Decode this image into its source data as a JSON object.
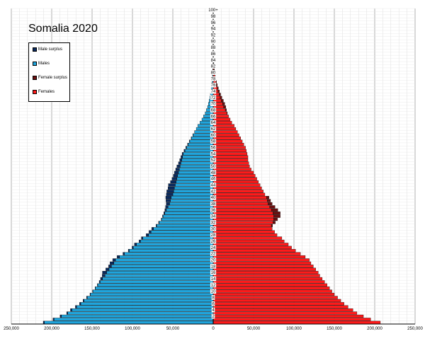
{
  "chart_data": {
    "type": "bar",
    "orientation": "horizontal-pyramid",
    "title": "Somalia 2020",
    "xlim": [
      -250000,
      250000
    ],
    "x_tick_labels": [
      "250,000",
      "200,000",
      "150,000",
      "100,000",
      "50,000",
      "0",
      "50,000",
      "100,000",
      "150,000",
      "200,000",
      "250,000"
    ],
    "age_labels": [
      "2",
      "4",
      "6",
      "8",
      "10",
      "12",
      "14",
      "16",
      "18",
      "20",
      "22",
      "24",
      "26",
      "28",
      "30",
      "32",
      "34",
      "36",
      "38",
      "40",
      "42",
      "44",
      "46",
      "48",
      "50",
      "52",
      "54",
      "56",
      "58",
      "60",
      "62",
      "64",
      "66",
      "68",
      "70",
      "72",
      "74",
      "76",
      "78",
      "80",
      "82",
      "84",
      "86",
      "88",
      "90",
      "92",
      "94",
      "96",
      "98",
      "100+"
    ],
    "ages_first": 0,
    "ages_last": 100,
    "grid": true,
    "legend_position": "top-left",
    "legend": [
      {
        "label": "Male surplus",
        "color": "#0a2a5e"
      },
      {
        "label": "Males",
        "color": "#1fa5dd"
      },
      {
        "label": "Female surplus",
        "color": "#6b0f0f"
      },
      {
        "label": "Females",
        "color": "#ff1a1a"
      }
    ],
    "series": [
      {
        "name": "Males",
        "color": "#1fa5dd",
        "values": [
          209000,
          197000,
          188000,
          180000,
          175000,
          169000,
          164000,
          160000,
          156000,
          152000,
          149000,
          146000,
          143000,
          140000,
          137000,
          134000,
          132000,
          129000,
          126000,
          123000,
          121000,
          116000,
          110000,
          104000,
          99000,
          95000,
          90000,
          87000,
          80000,
          77000,
          74000,
          70000,
          67000,
          64000,
          62000,
          60000,
          58000,
          56000,
          54000,
          53000,
          52000,
          50000,
          49000,
          48000,
          47000,
          46000,
          45000,
          44000,
          43000,
          42000,
          41000,
          40000,
          39000,
          38000,
          37000,
          35000,
          33000,
          31000,
          29000,
          27000,
          25000,
          23000,
          21000,
          19000,
          16500,
          14000,
          12000,
          10000,
          8500,
          7000,
          6000,
          5000,
          4200,
          3500,
          3000,
          2500,
          2000,
          1600,
          1300,
          1000,
          800,
          600,
          450,
          300,
          200,
          120,
          80,
          50,
          30,
          15,
          8,
          4,
          2,
          1,
          0,
          0,
          0,
          0,
          0,
          0,
          0
        ]
      },
      {
        "name": "Male surplus",
        "color": "#0a2a5e",
        "values": [
          1500,
          1400,
          1600,
          1500,
          1800,
          1700,
          1500,
          1200,
          900,
          600,
          400,
          300,
          500,
          1200,
          2500,
          3500,
          5200,
          4000,
          3500,
          4800,
          3500,
          3000,
          1800,
          1200,
          1500,
          2500,
          1800,
          2000,
          3000,
          2500,
          2200,
          800,
          600,
          400,
          800,
          1200,
          1800,
          3000,
          4200,
          5500,
          6800,
          8000,
          8500,
          8000,
          8500,
          7000,
          6000,
          5200,
          5000,
          4500,
          4000,
          3000,
          2500,
          2000,
          1500,
          1200,
          1000,
          700,
          500,
          300,
          200,
          100,
          0,
          0,
          0,
          0,
          0,
          0,
          0,
          0,
          0,
          0,
          0,
          0,
          0,
          0,
          0,
          0,
          0,
          0,
          0,
          0,
          0,
          0,
          0,
          0,
          0,
          0,
          0,
          0,
          0,
          0,
          0,
          0,
          0,
          0,
          0,
          0,
          0,
          0,
          0
        ]
      },
      {
        "name": "Females",
        "color": "#ff1a1a",
        "values": [
          207000,
          195000,
          186000,
          178000,
          173000,
          167000,
          162000,
          158000,
          154000,
          150000,
          147000,
          144000,
          141000,
          138000,
          135000,
          132000,
          130000,
          127000,
          124000,
          121000,
          119000,
          114000,
          108000,
          102000,
          97000,
          93000,
          88000,
          85000,
          79000,
          76000,
          73000,
          72000,
          74000,
          75000,
          75000,
          74000,
          72000,
          70000,
          68000,
          67000,
          66000,
          64000,
          62000,
          60000,
          58000,
          56000,
          54000,
          52000,
          50000,
          47000,
          45000,
          44000,
          43000,
          43000,
          42000,
          41000,
          40000,
          38000,
          36000,
          34000,
          32000,
          30000,
          28000,
          26000,
          23000,
          21000,
          19000,
          17000,
          15000,
          13000,
          11500,
          10000,
          8500,
          7200,
          6000,
          5000,
          4000,
          3200,
          2600,
          2000,
          1600,
          1200,
          900,
          650,
          450,
          300,
          200,
          130,
          80,
          50,
          30,
          18,
          10,
          5,
          3,
          2,
          1,
          0,
          0,
          0,
          0
        ]
      },
      {
        "name": "Female surplus",
        "color": "#6b0f0f",
        "values": [
          0,
          0,
          0,
          0,
          0,
          0,
          0,
          0,
          0,
          0,
          0,
          0,
          0,
          0,
          0,
          0,
          0,
          0,
          0,
          0,
          0,
          0,
          0,
          0,
          0,
          0,
          0,
          0,
          0,
          0,
          0,
          1500,
          3000,
          4500,
          8000,
          9000,
          8000,
          6500,
          5000,
          4000,
          3000,
          0,
          0,
          0,
          0,
          0,
          0,
          0,
          0,
          0,
          0,
          0,
          0,
          0,
          0,
          0,
          0,
          0,
          0,
          0,
          0,
          0,
          0,
          0,
          0,
          0,
          0,
          500,
          1500,
          2500,
          2800,
          2600,
          2300,
          2000,
          1700,
          1400,
          1100,
          900,
          700,
          550,
          420,
          320,
          240,
          180,
          120,
          80,
          50,
          30,
          20,
          12,
          8,
          5,
          3,
          2,
          1,
          0,
          0,
          0,
          0,
          0,
          0
        ]
      }
    ]
  }
}
